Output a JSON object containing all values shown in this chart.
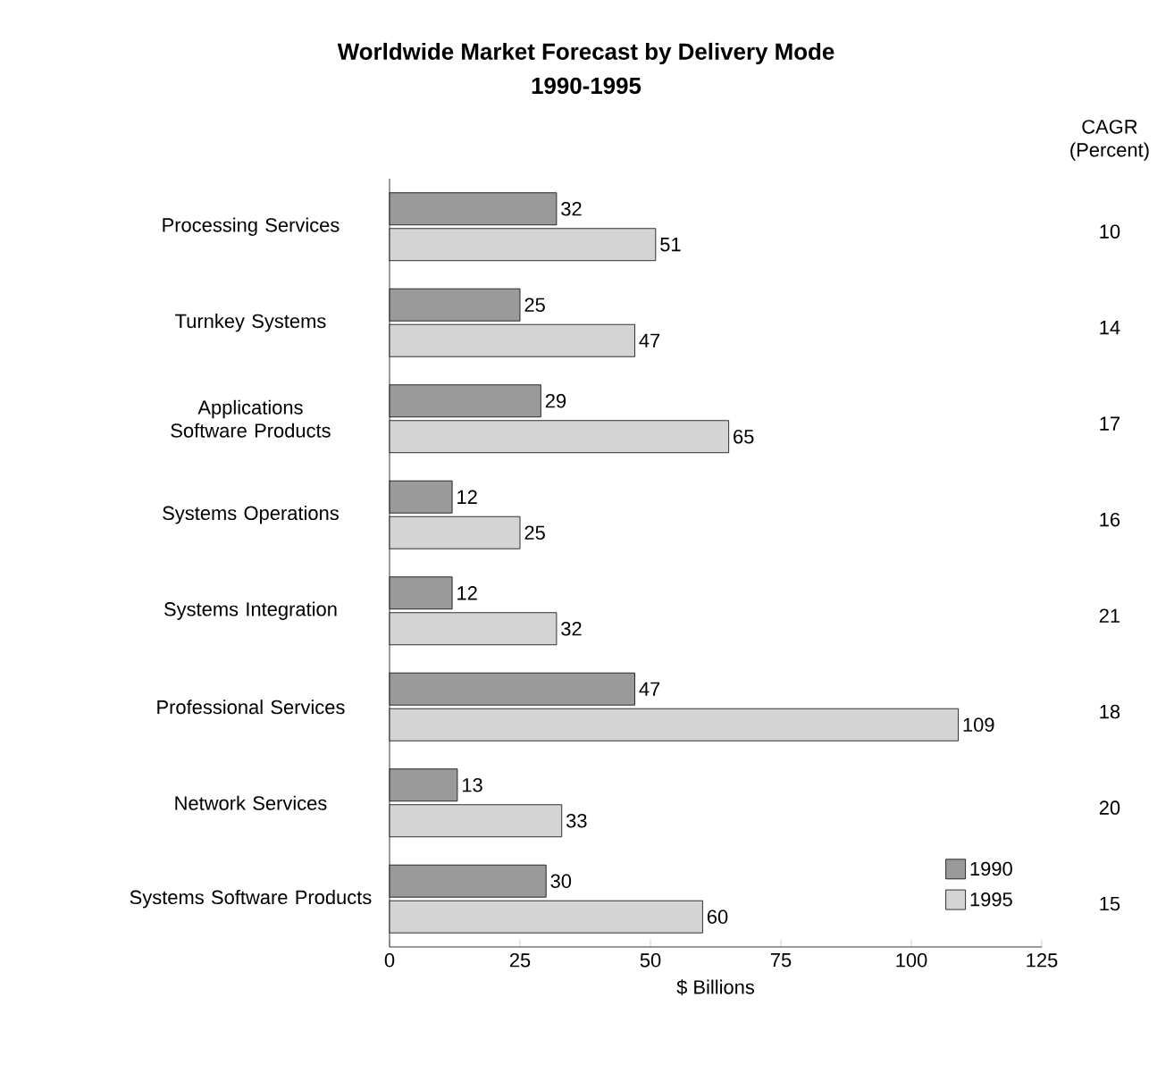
{
  "chart_data": {
    "type": "bar",
    "orientation": "horizontal",
    "title": "Worldwide Market Forecast by Delivery Mode",
    "subtitle": "1990-1995",
    "categories": [
      "Processing Services",
      "Turnkey Systems",
      "Applications Software Products",
      "Systems Operations",
      "Systems Integration",
      "Professional Services",
      "Network Services",
      "Systems Software Products"
    ],
    "series": [
      {
        "name": "1990",
        "color": "#9a9a9a",
        "values": [
          32,
          25,
          29,
          12,
          12,
          47,
          13,
          30
        ]
      },
      {
        "name": "1995",
        "color": "#d4d4d4",
        "values": [
          51,
          47,
          65,
          25,
          32,
          109,
          33,
          60
        ]
      }
    ],
    "xlabel": "$ Billions",
    "xlim": [
      0,
      125
    ],
    "xticks": [
      0,
      25,
      50,
      75,
      100,
      125
    ],
    "data_labels": true,
    "legend": "bottom right",
    "grid": false,
    "annotations": [
      "CAGR (Percent)",
      "10",
      "14",
      "17",
      "16",
      "21",
      "18",
      "20",
      "15"
    ]
  }
}
